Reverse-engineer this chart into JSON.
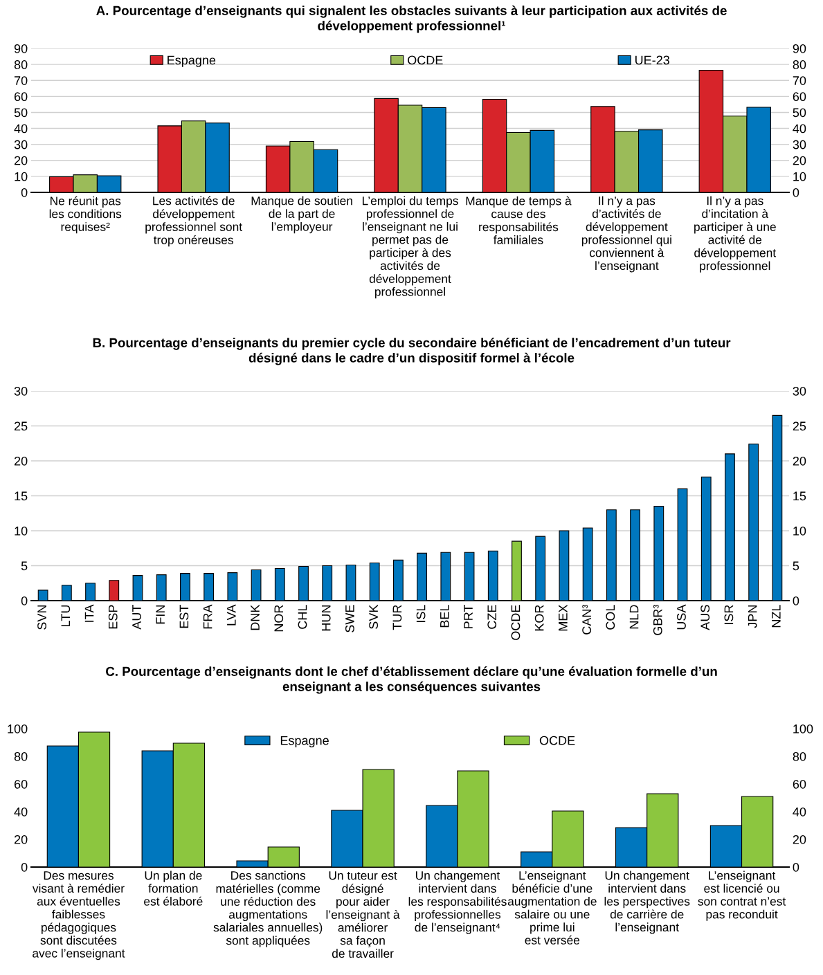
{
  "chart_data": [
    {
      "type": "bar",
      "title": "A. Pourcentage d’enseignants qui signalent les obstacles suivants à leur participation aux activités de\ndéveloppement professionnel¹",
      "categories": [
        "Ne réunit pas\nles conditions\nrequises²",
        "Les activités de\ndéveloppement\nprofessionnel sont\ntrop onéreuses",
        "Manque de soutien\nde la part de\nl’employeur",
        "L’emploi du temps\nprofessionnel de\nl’enseignant ne lui\npermet pas de\nparticiper à des\nactivités de\ndéveloppement\nprofessionnel",
        "Manque de temps à\ncause des\nresponsabilités\nfamiliales",
        "Il n’y a pas\nd’activités de\ndéveloppement\nprofessionnel qui\nconviennent à\nl’enseignant",
        "Il n’y a pas\nd’incitation à\nparticiper à une\nactivité de\ndéveloppement\nprofessionnel"
      ],
      "series": [
        {
          "name": "Espagne",
          "color": "#d7242a",
          "values": [
            9.8,
            41.6,
            29,
            58.7,
            58.2,
            53.7,
            76.4
          ]
        },
        {
          "name": "OCDE",
          "color": "#9bbb59",
          "values": [
            11,
            44.7,
            31.8,
            54.5,
            37.4,
            38.2,
            47.7
          ]
        },
        {
          "name": "UE-23",
          "color": "#0077be",
          "values": [
            10.4,
            43.4,
            26.7,
            53,
            38.8,
            39.1,
            53.2
          ]
        }
      ],
      "ylim": [
        0,
        90
      ],
      "yticks": [
        0,
        10,
        20,
        30,
        40,
        50,
        60,
        70,
        80,
        90
      ],
      "y2lim": [
        0,
        90
      ],
      "y2ticks": [
        0,
        10,
        20,
        30,
        40,
        50,
        60,
        70,
        80,
        90
      ],
      "grid": "y",
      "legend": "top"
    },
    {
      "type": "bar",
      "title": "B. Pourcentage d’enseignants du premier cycle du secondaire bénéficiant de l’encadrement d’un tuteur\ndésigné dans le cadre d’un dispositif formel à l’école",
      "categories": [
        "SVN",
        "LTU",
        "ITA",
        "ESP",
        "AUT",
        "FIN",
        "EST",
        "FRA",
        "LVA",
        "DNK",
        "NOR",
        "CHL",
        "HUN",
        "SWE",
        "SVK",
        "TUR",
        "ISL",
        "BEL",
        "PRT",
        "CZE",
        "OCDE",
        "KOR",
        "MEX",
        "CAN³",
        "COL",
        "NLD",
        "GBR³",
        "USA",
        "AUS",
        "ISR",
        "JPN",
        "NZL"
      ],
      "series": [
        {
          "values": [
            1.5,
            2.2,
            2.5,
            2.9,
            3.6,
            3.7,
            3.9,
            3.9,
            4.0,
            4.4,
            4.6,
            4.9,
            5.0,
            5.1,
            5.4,
            5.8,
            6.8,
            6.9,
            6.9,
            7.1,
            8.5,
            9.2,
            10.0,
            10.4,
            13.0,
            13.0,
            13.5,
            16.0,
            17.7,
            21.0,
            22.4,
            26.5
          ],
          "colors": [
            "#0077be",
            "#0077be",
            "#0077be",
            "#d7242a",
            "#0077be",
            "#0077be",
            "#0077be",
            "#0077be",
            "#0077be",
            "#0077be",
            "#0077be",
            "#0077be",
            "#0077be",
            "#0077be",
            "#0077be",
            "#0077be",
            "#0077be",
            "#0077be",
            "#0077be",
            "#0077be",
            "#8cc63f",
            "#0077be",
            "#0077be",
            "#0077be",
            "#0077be",
            "#0077be",
            "#0077be",
            "#0077be",
            "#0077be",
            "#0077be",
            "#0077be",
            "#0077be"
          ]
        }
      ],
      "ylim": [
        0,
        30
      ],
      "yticks": [
        0,
        5,
        10,
        15,
        20,
        25,
        30
      ],
      "y2lim": [
        0,
        30
      ],
      "y2ticks": [
        0,
        5,
        10,
        15,
        20,
        25,
        30
      ],
      "grid": "y"
    },
    {
      "type": "bar",
      "title": "C. Pourcentage d’enseignants dont le chef d’établissement déclare qu’une évaluation formelle d’un\nenseignant a les conséquences suivantes",
      "categories": [
        "Des mesures\nvisant à remédier\naux éventuelles\nfaiblesses\npédagogiques\nsont discutées\navec l’enseignant",
        "Un plan de\nformation\nest élaboré",
        "Des sanctions\nmatérielles (comme\nune réduction des\naugmentations\nsalariales annuelles)\nsont appliquées",
        "Un tuteur est\ndésigné\npour aider\nl’enseignant à\naméliorer\nsa façon\nde travailler",
        "Un changement\nintervient dans\nles responsabilités\nprofessionnelles\nde l’enseignant⁴",
        "L’enseignant\nbénéficie d’une\naugmentation de\nsalaire ou une\nprime lui\nest versée",
        "Un changement\nintervient dans\nles perspectives\nde carrière de\nl’enseignant",
        "L’enseignant\nest licencié ou\nson contrat n’est\npas reconduit"
      ],
      "series": [
        {
          "name": "Espagne",
          "color": "#0077be",
          "values": [
            87.5,
            84,
            4.5,
            41,
            44.5,
            11,
            28.5,
            30
          ]
        },
        {
          "name": "OCDE",
          "color": "#8cc63f",
          "values": [
            97.5,
            89.5,
            14.5,
            70.5,
            69.5,
            40.5,
            53,
            51
          ]
        }
      ],
      "ylim": [
        0,
        100
      ],
      "yticks": [
        0,
        20,
        40,
        60,
        80,
        100
      ],
      "y2lim": [
        0,
        100
      ],
      "y2ticks": [
        0,
        20,
        40,
        60,
        80,
        100
      ],
      "grid": false,
      "legend": "top"
    }
  ]
}
